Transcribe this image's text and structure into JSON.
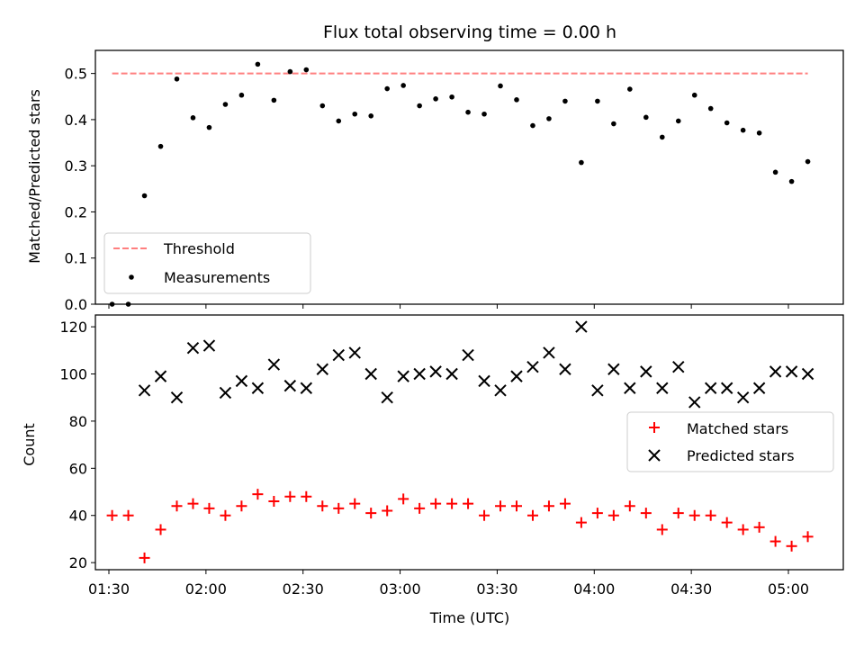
{
  "chart_data": [
    {
      "type": "scatter",
      "title": "Flux total observing time = 0.00 h",
      "xlabel": "",
      "ylabel": "Matched/Predicted stars",
      "ylim": [
        0,
        0.55
      ],
      "yticks": [
        0.0,
        0.1,
        0.2,
        0.3,
        0.4,
        0.5
      ],
      "ytick_labels": [
        "0.0",
        "0.1",
        "0.2",
        "0.3",
        "0.4",
        "0.5"
      ],
      "legend_placement": "lower-left",
      "threshold": {
        "name": "Threshold",
        "value": 0.5,
        "color": "#ff7f7f",
        "style": "dashed"
      },
      "series": [
        {
          "name": "Measurements",
          "color": "#000000",
          "marker": "dot",
          "x": [
            "01:31",
            "01:36",
            "01:41",
            "01:46",
            "01:51",
            "01:56",
            "02:01",
            "02:06",
            "02:11",
            "02:16",
            "02:21",
            "02:26",
            "02:31",
            "02:36",
            "02:41",
            "02:46",
            "02:51",
            "02:56",
            "03:01",
            "03:06",
            "03:11",
            "03:16",
            "03:21",
            "03:26",
            "03:31",
            "03:36",
            "03:41",
            "03:46",
            "03:51",
            "03:56",
            "04:01",
            "04:06",
            "04:11",
            "04:16",
            "04:21",
            "04:26",
            "04:31",
            "04:36",
            "04:41",
            "04:46",
            "04:51",
            "04:56",
            "05:01",
            "05:06"
          ],
          "values": [
            0.0,
            0.0,
            0.235,
            0.342,
            0.488,
            0.404,
            0.383,
            0.433,
            0.453,
            0.52,
            0.442,
            0.504,
            0.508,
            0.43,
            0.397,
            0.412,
            0.408,
            0.467,
            0.474,
            0.43,
            0.445,
            0.449,
            0.416,
            0.412,
            0.473,
            0.443,
            0.387,
            0.402,
            0.44,
            0.307,
            0.44,
            0.391,
            0.466,
            0.405,
            0.362,
            0.397,
            0.453,
            0.424,
            0.393,
            0.377,
            0.371,
            0.286,
            0.266,
            0.309
          ]
        }
      ]
    },
    {
      "type": "scatter",
      "title": "",
      "xlabel": "Time (UTC)",
      "ylabel": "Count",
      "ylim": [
        17,
        125
      ],
      "yticks": [
        20,
        40,
        60,
        80,
        100,
        120
      ],
      "ytick_labels": [
        "20",
        "40",
        "60",
        "80",
        "100",
        "120"
      ],
      "xticks": [
        "01:30",
        "02:00",
        "02:30",
        "03:00",
        "03:30",
        "04:00",
        "04:30",
        "05:00"
      ],
      "legend_placement": "center-right",
      "x": [
        "01:31",
        "01:36",
        "01:41",
        "01:46",
        "01:51",
        "01:56",
        "02:01",
        "02:06",
        "02:11",
        "02:16",
        "02:21",
        "02:26",
        "02:31",
        "02:36",
        "02:41",
        "02:46",
        "02:51",
        "02:56",
        "03:01",
        "03:06",
        "03:11",
        "03:16",
        "03:21",
        "03:26",
        "03:31",
        "03:36",
        "03:41",
        "03:46",
        "03:51",
        "03:56",
        "04:01",
        "04:06",
        "04:11",
        "04:16",
        "04:21",
        "04:26",
        "04:31",
        "04:36",
        "04:41",
        "04:46",
        "04:51",
        "04:56",
        "05:01",
        "05:06"
      ],
      "series": [
        {
          "name": "Matched stars",
          "color": "#ff0000",
          "marker": "plus",
          "values": [
            40,
            40,
            22,
            34,
            44,
            45,
            43,
            40,
            44,
            49,
            46,
            48,
            48,
            44,
            43,
            45,
            41,
            42,
            47,
            43,
            45,
            45,
            45,
            40,
            44,
            44,
            40,
            44,
            45,
            37,
            41,
            40,
            44,
            41,
            34,
            41,
            40,
            40,
            37,
            34,
            35,
            29,
            27,
            31
          ]
        },
        {
          "name": "Predicted stars",
          "color": "#000000",
          "marker": "x",
          "values": [
            null,
            null,
            93,
            99,
            90,
            111,
            112,
            92,
            97,
            94,
            104,
            95,
            94,
            102,
            108,
            109,
            100,
            90,
            99,
            100,
            101,
            100,
            108,
            97,
            93,
            99,
            103,
            109,
            102,
            120,
            93,
            102,
            94,
            101,
            94,
            103,
            88,
            94,
            94,
            90,
            94,
            101,
            101,
            100
          ]
        }
      ]
    }
  ]
}
